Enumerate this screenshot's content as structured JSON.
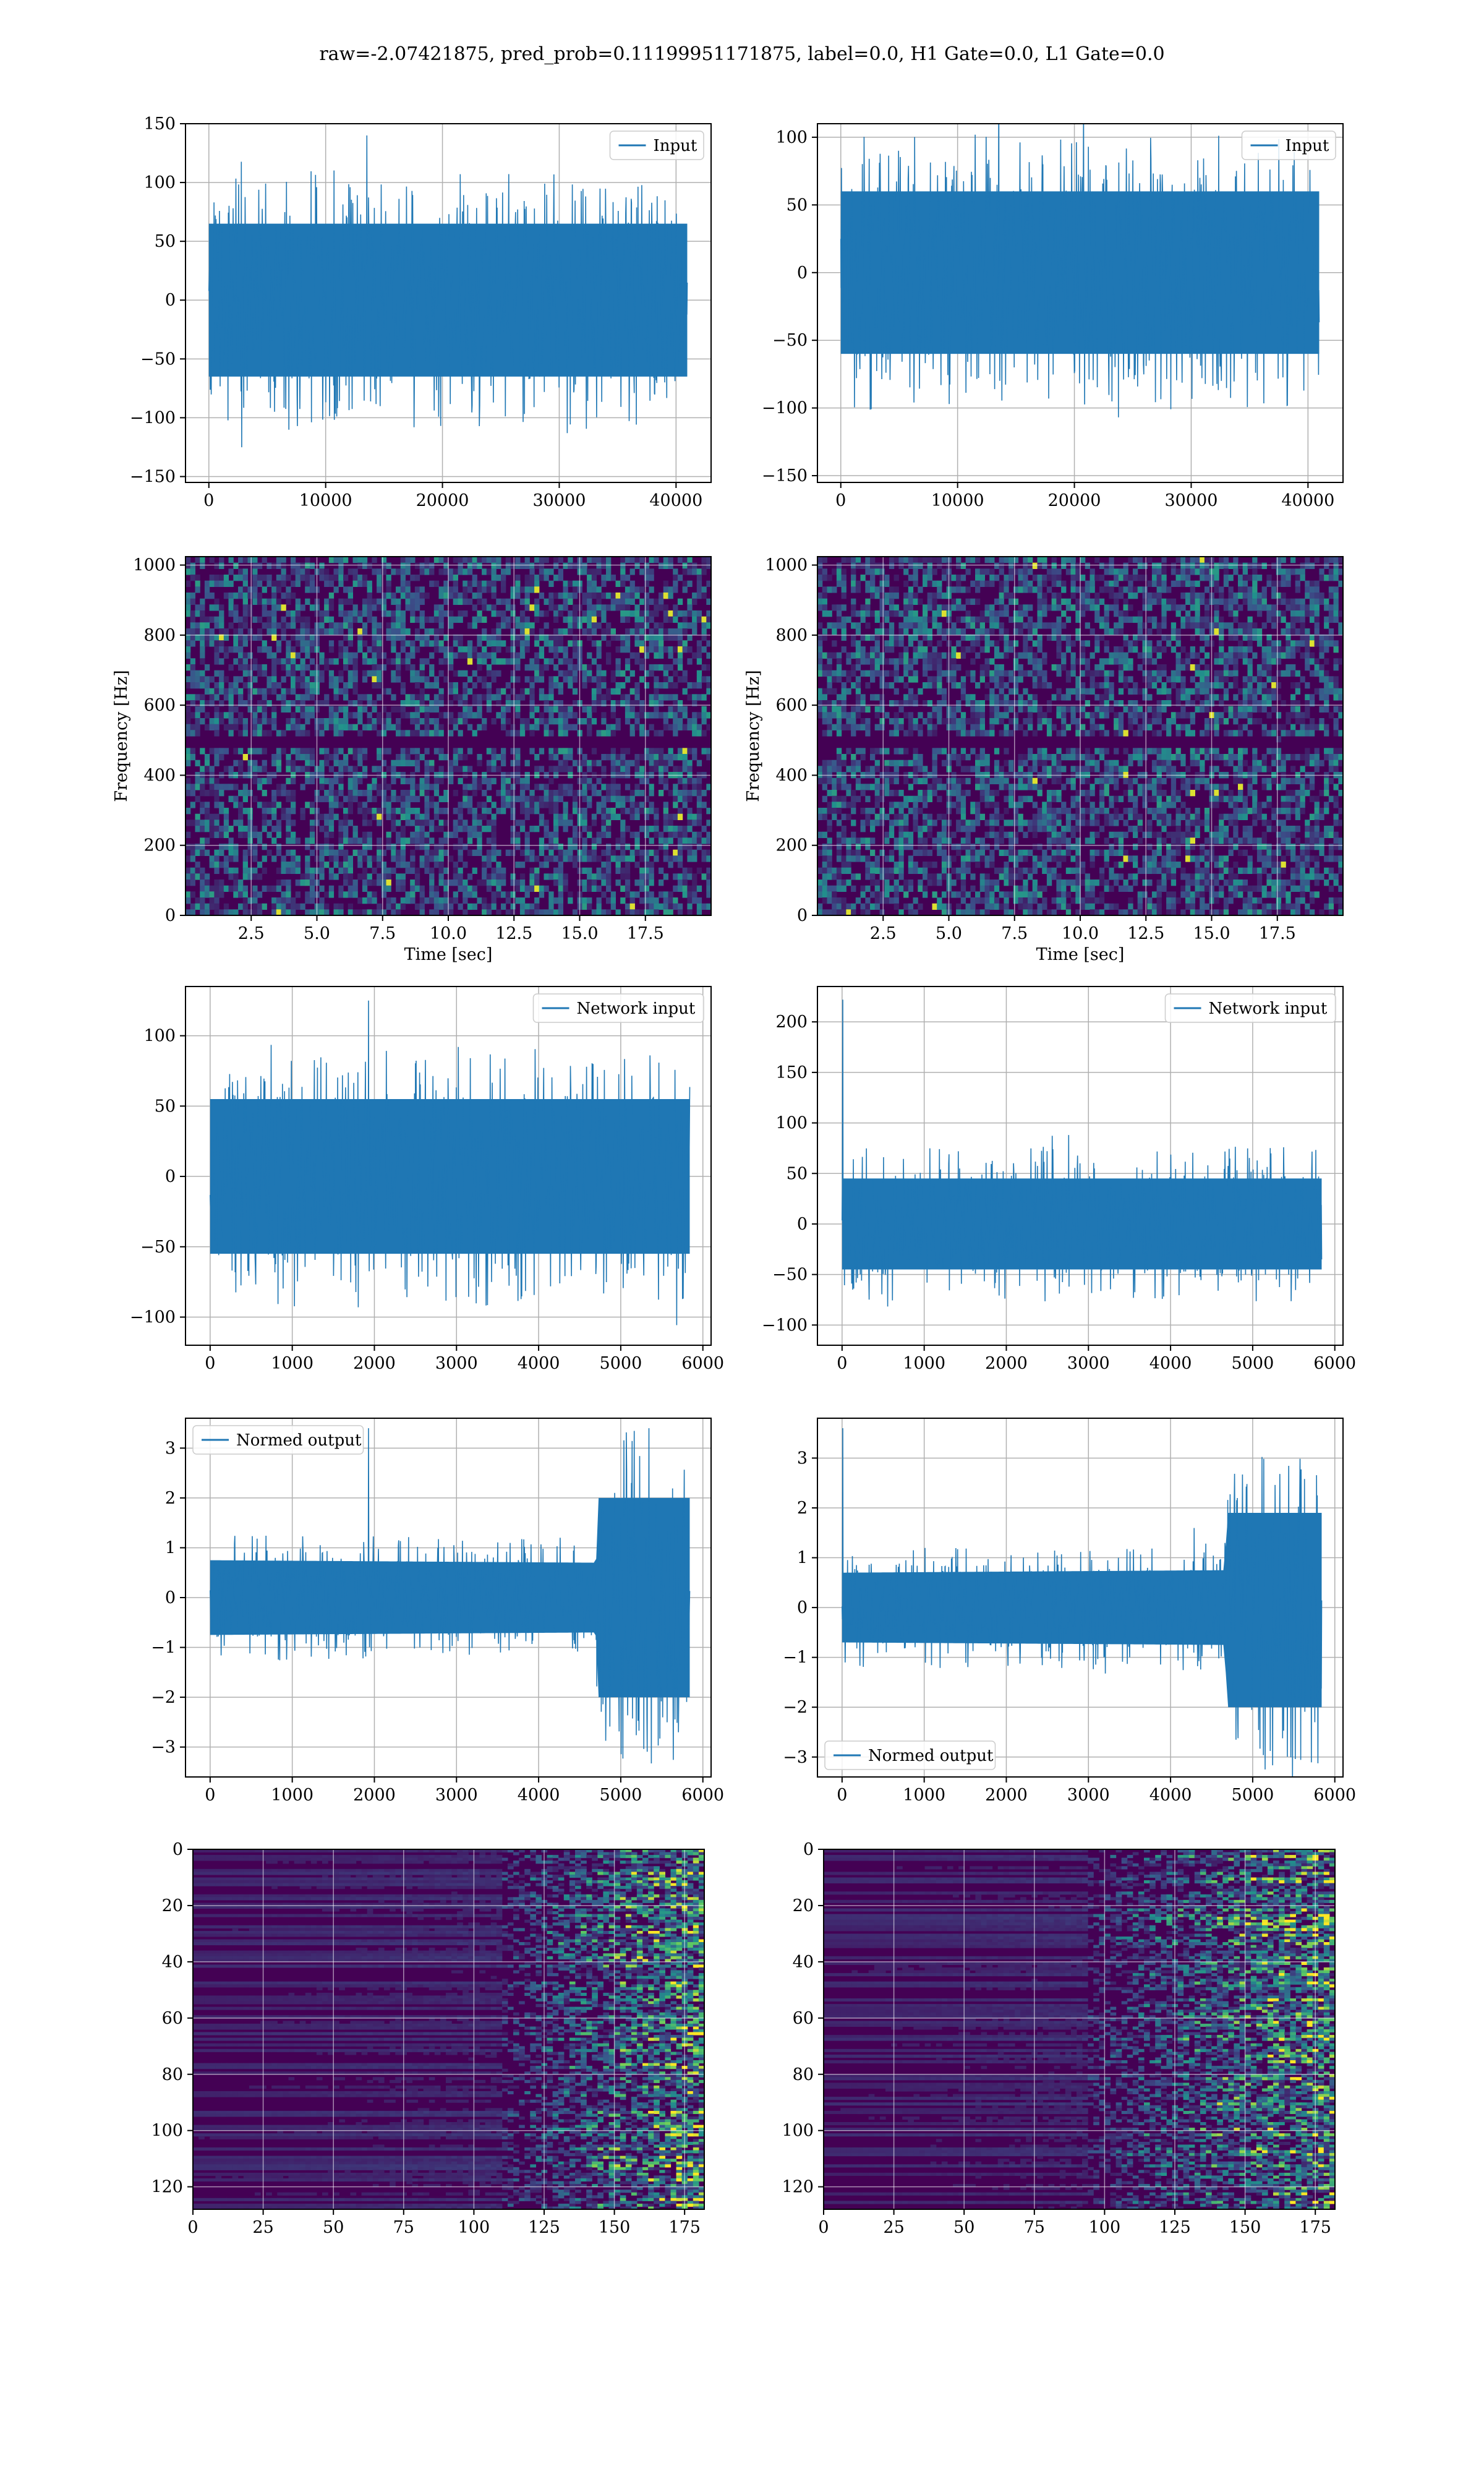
{
  "figure": {
    "suptitle": "raw=-2.07421875, pred_prob=0.11199951171875, label=0.0, H1 Gate=0.0, L1 Gate=0.0"
  },
  "colors": {
    "series": "#1f77b4",
    "grid": "#b0b0b0",
    "axes": "#000000",
    "heatmap_low": "#440154",
    "heatmap_mid": "#21918c",
    "heatmap_high": "#fde725"
  },
  "chart_data": [
    {
      "id": "input-h1",
      "type": "line",
      "title": "",
      "xlabel": "",
      "ylabel": "",
      "legend": "top-right",
      "grid": true,
      "xlim": [
        -2000,
        43000
      ],
      "ylim": [
        -155,
        150
      ],
      "xticks": [
        0,
        10000,
        20000,
        30000,
        40000
      ],
      "yticks": [
        -150,
        -100,
        -50,
        0,
        50,
        100,
        150
      ],
      "series": [
        {
          "name": "Input",
          "x_range": [
            0,
            40960
          ],
          "band": 70,
          "peak": 140,
          "envelope": [
            {
              "x": 0,
              "hi": 65,
              "lo": -65
            },
            {
              "x": 40960,
              "hi": 65,
              "lo": -65
            }
          ]
        }
      ]
    },
    {
      "id": "input-l1",
      "type": "line",
      "title": "",
      "xlabel": "",
      "ylabel": "",
      "legend": "top-right",
      "grid": true,
      "xlim": [
        -2000,
        43000
      ],
      "ylim": [
        -155,
        110
      ],
      "xticks": [
        0,
        10000,
        20000,
        30000,
        40000
      ],
      "yticks": [
        -150,
        -100,
        -50,
        0,
        50,
        100
      ],
      "series": [
        {
          "name": "Input",
          "x_range": [
            0,
            40960
          ],
          "band": 60,
          "peak": 145,
          "envelope": [
            {
              "x": 0,
              "hi": 60,
              "lo": -60
            },
            {
              "x": 40960,
              "hi": 60,
              "lo": -60
            }
          ]
        }
      ]
    },
    {
      "id": "spectrogram-h1",
      "type": "heatmap",
      "title": "",
      "xlabel": "Time [sec]",
      "ylabel": "Frequency [Hz]",
      "grid": true,
      "xlim": [
        0,
        20
      ],
      "ylim": [
        0,
        1024
      ],
      "xticks": [
        2.5,
        5.0,
        7.5,
        10.0,
        12.5,
        15.0,
        17.5
      ],
      "yticks": [
        0,
        200,
        400,
        600,
        800,
        1000
      ],
      "dark_band_hz": 500
    },
    {
      "id": "spectrogram-l1",
      "type": "heatmap",
      "title": "",
      "xlabel": "Time [sec]",
      "ylabel": "Frequency [Hz]",
      "grid": true,
      "xlim": [
        0,
        20
      ],
      "ylim": [
        0,
        1024
      ],
      "xticks": [
        2.5,
        5.0,
        7.5,
        10.0,
        12.5,
        15.0,
        17.5
      ],
      "yticks": [
        0,
        200,
        400,
        600,
        800,
        1000
      ],
      "dark_band_hz": 500
    },
    {
      "id": "network-input-h1",
      "type": "line",
      "title": "",
      "xlabel": "",
      "ylabel": "",
      "legend": "top-right",
      "grid": true,
      "xlim": [
        -300,
        6100
      ],
      "ylim": [
        -120,
        135
      ],
      "xticks": [
        0,
        1000,
        2000,
        3000,
        4000,
        5000,
        6000
      ],
      "yticks": [
        -100,
        -50,
        0,
        50,
        100
      ],
      "series": [
        {
          "name": "Network input",
          "x_range": [
            0,
            5840
          ],
          "band": 55,
          "peak": 125,
          "envelope": [
            {
              "x": 0,
              "hi": 55,
              "lo": -55
            },
            {
              "x": 5840,
              "hi": 55,
              "lo": -55
            }
          ]
        }
      ]
    },
    {
      "id": "network-input-l1",
      "type": "line",
      "title": "",
      "xlabel": "",
      "ylabel": "",
      "legend": "top-right",
      "grid": true,
      "xlim": [
        -300,
        6100
      ],
      "ylim": [
        -120,
        235
      ],
      "xticks": [
        0,
        1000,
        2000,
        3000,
        4000,
        5000,
        6000
      ],
      "yticks": [
        -100,
        -50,
        0,
        50,
        100,
        150,
        200
      ],
      "series": [
        {
          "name": "Network input",
          "x_range": [
            0,
            5840
          ],
          "band": 45,
          "peak": 222,
          "envelope": [
            {
              "x": 0,
              "hi": 45,
              "lo": -45
            },
            {
              "x": 5840,
              "hi": 45,
              "lo": -45
            }
          ]
        }
      ]
    },
    {
      "id": "normed-output-h1",
      "type": "line",
      "title": "",
      "xlabel": "",
      "ylabel": "",
      "legend": "top-left",
      "grid": true,
      "xlim": [
        -300,
        6100
      ],
      "ylim": [
        -3.6,
        3.6
      ],
      "xticks": [
        0,
        1000,
        2000,
        3000,
        4000,
        5000,
        6000
      ],
      "yticks": [
        -3,
        -2,
        -1,
        0,
        1,
        2,
        3
      ],
      "series": [
        {
          "name": "Normed output",
          "x_range": [
            0,
            5840
          ],
          "band": 0.75,
          "peak": 3.4,
          "envelope": [
            {
              "x": 0,
              "hi": 0.75,
              "lo": -0.75
            },
            {
              "x": 4700,
              "hi": 0.7,
              "lo": -0.7
            },
            {
              "x": 4720,
              "hi": 2.0,
              "lo": -2.0
            },
            {
              "x": 5840,
              "hi": 2.0,
              "lo": -2.0
            }
          ]
        }
      ]
    },
    {
      "id": "normed-output-l1",
      "type": "line",
      "title": "",
      "xlabel": "",
      "ylabel": "",
      "legend": "bottom-left",
      "grid": true,
      "xlim": [
        -300,
        6100
      ],
      "ylim": [
        -3.4,
        3.8
      ],
      "xticks": [
        0,
        1000,
        2000,
        3000,
        4000,
        5000,
        6000
      ],
      "yticks": [
        -3,
        -2,
        -1,
        0,
        1,
        2,
        3
      ],
      "series": [
        {
          "name": "Normed output",
          "x_range": [
            0,
            5840
          ],
          "band": 0.7,
          "peak": 3.6,
          "envelope": [
            {
              "x": 0,
              "hi": 0.7,
              "lo": -0.7
            },
            {
              "x": 4650,
              "hi": 0.75,
              "lo": -0.75
            },
            {
              "x": 4700,
              "hi": 1.9,
              "lo": -2.0
            },
            {
              "x": 5840,
              "hi": 1.9,
              "lo": -2.0
            }
          ]
        }
      ]
    },
    {
      "id": "feature-map-h1",
      "type": "heatmap",
      "title": "",
      "xlabel": "",
      "ylabel": "",
      "grid": true,
      "xlim": [
        0,
        182
      ],
      "ylim": [
        128,
        0
      ],
      "xticks": [
        0,
        25,
        50,
        75,
        100,
        125,
        150,
        175
      ],
      "yticks": [
        0,
        20,
        40,
        60,
        80,
        100,
        120
      ],
      "activation_onset": 110
    },
    {
      "id": "feature-map-l1",
      "type": "heatmap",
      "title": "",
      "xlabel": "",
      "ylabel": "",
      "grid": true,
      "xlim": [
        0,
        182
      ],
      "ylim": [
        128,
        0
      ],
      "xticks": [
        0,
        25,
        50,
        75,
        100,
        125,
        150,
        175
      ],
      "yticks": [
        0,
        20,
        40,
        60,
        80,
        100,
        120
      ],
      "activation_onset": 95
    }
  ]
}
